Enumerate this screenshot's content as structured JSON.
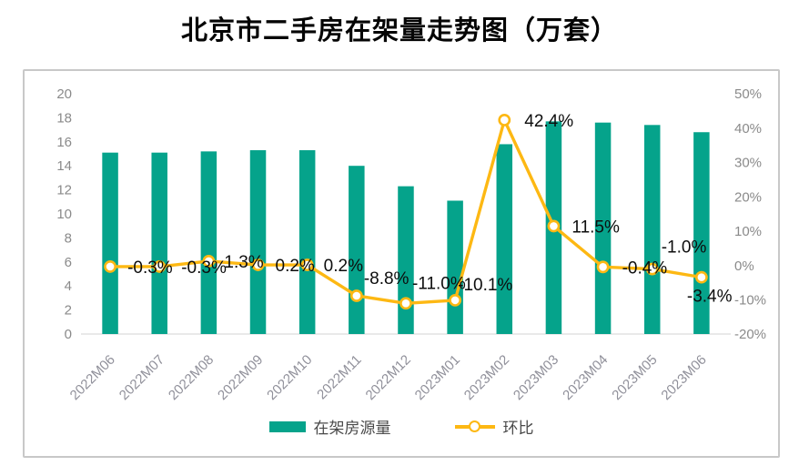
{
  "title": "北京市二手房在架量走势图（万套）",
  "colors": {
    "bar": "#05a38b",
    "line": "#fdb813",
    "marker_fill": "#ffffff",
    "axis_text": "#8a8a8a",
    "x_text": "#90909a",
    "label_text": "#0d0d0d",
    "axis_line": "#dcdcdc",
    "card_border": "#c8c8c8",
    "legend_text": "#4a4a4a",
    "title_text": "#050505"
  },
  "legend": {
    "items": [
      {
        "label": "在架房源量",
        "type": "bar"
      },
      {
        "label": "环比",
        "type": "line"
      }
    ]
  },
  "chart_data": {
    "type": "bar+line combo",
    "title": "北京市二手房在架量走势图（万套）",
    "categories": [
      "2022M06",
      "2022M07",
      "2022M08",
      "2022M09",
      "2022M10",
      "2022M11",
      "2022M12",
      "2023M01",
      "2023M02",
      "2023M03",
      "2023M04",
      "2023M05",
      "2023M06"
    ],
    "series": [
      {
        "name": "在架房源量",
        "type": "bar",
        "axis": "left",
        "values": [
          15.1,
          15.1,
          15.2,
          15.3,
          15.3,
          14.0,
          12.3,
          11.1,
          15.8,
          17.7,
          17.6,
          17.4,
          16.8
        ]
      },
      {
        "name": "环比",
        "type": "line",
        "axis": "right",
        "values": [
          -0.3,
          -0.3,
          1.3,
          0.2,
          0.2,
          -8.8,
          -11.0,
          -10.1,
          42.4,
          11.5,
          -0.4,
          -1.0,
          -3.4
        ],
        "labels": [
          "-0.3%",
          "-0.3%",
          "1.3%",
          "0.2%",
          "0.2%",
          "-8.8%",
          "-11.0%",
          "-10.1%",
          "42.4%",
          "11.5%",
          "-0.4%",
          "-1.0%",
          "-3.4%"
        ]
      }
    ],
    "left_axis": {
      "ticks": [
        "20",
        "18",
        "16",
        "14",
        "12",
        "10",
        "8",
        "6",
        "4",
        "2",
        "0"
      ],
      "range": [
        0,
        20
      ]
    },
    "right_axis": {
      "ticks": [
        "50%",
        "40%",
        "30%",
        "20%",
        "10%",
        "0%",
        "-10%",
        "-20%"
      ],
      "range": [
        -20,
        50
      ]
    },
    "grid": false,
    "legend_position": "bottom-center",
    "x_label_rotation_deg": 45
  }
}
